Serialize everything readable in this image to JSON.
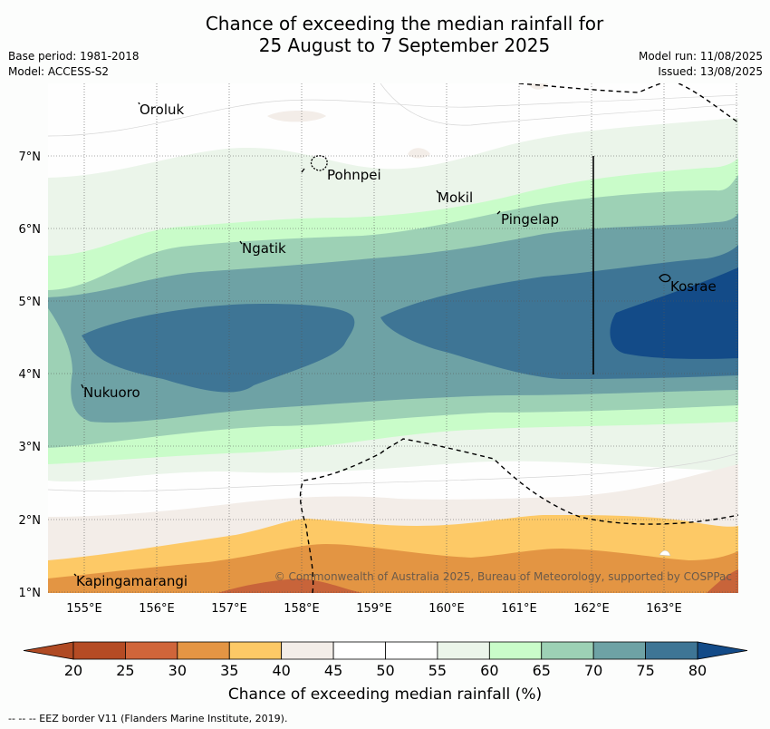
{
  "title": {
    "line1": "Chance of exceeding the median rainfall for",
    "line2": "25 August to 7 September 2025"
  },
  "meta": {
    "base_period": "Base period: 1981-2018",
    "model": "Model: ACCESS-S2",
    "model_run": "Model run: 11/08/2025",
    "issued": "Issued: 13/08/2025"
  },
  "axes": {
    "x_ticks": [
      "155°E",
      "156°E",
      "157°E",
      "158°E",
      "159°E",
      "160°E",
      "161°E",
      "162°E",
      "163°E"
    ],
    "y_ticks": [
      "7°N",
      "6°N",
      "5°N",
      "4°N",
      "3°N",
      "2°N",
      "1°N"
    ]
  },
  "places": [
    {
      "name": "Oroluk"
    },
    {
      "name": "Pohnpei"
    },
    {
      "name": "Mokil"
    },
    {
      "name": "Pingelap"
    },
    {
      "name": "Ngatik"
    },
    {
      "name": "Kosrae"
    },
    {
      "name": "Nukuoro"
    },
    {
      "name": "Kapingamarangi"
    }
  ],
  "copyright": "© Commonwealth of Australia 2025, Bureau of Meteorology, supported by COSPPac",
  "colorbar": {
    "title": "Chance of exceeding median rainfall (%)",
    "ticks": [
      "20",
      "25",
      "30",
      "35",
      "40",
      "45",
      "50",
      "55",
      "60",
      "65",
      "70",
      "75",
      "80"
    ],
    "low_extend_color": "#b04a23",
    "high_extend_color": "#134b88",
    "colors": [
      "#b54b24",
      "#d0653a",
      "#e49544",
      "#fdc966",
      "#f3ede8",
      "#ffffff",
      "#ffffff",
      "#ebf5ea",
      "#c9fcc9",
      "#9dd1b5",
      "#6ea2a5",
      "#3e7595"
    ]
  },
  "footer": "--  --  -- EEZ border V11 (Flanders Marine Institute, 2019).",
  "map_levels": {
    "band_colors": [
      "#c8643a",
      "#e39543",
      "#fdc966",
      "#f3ede8",
      "#ffffff",
      "#ebf5ea",
      "#c9fcc9",
      "#9dd1b5",
      "#6ea2a5",
      "#3e7595",
      "#134b88"
    ]
  }
}
